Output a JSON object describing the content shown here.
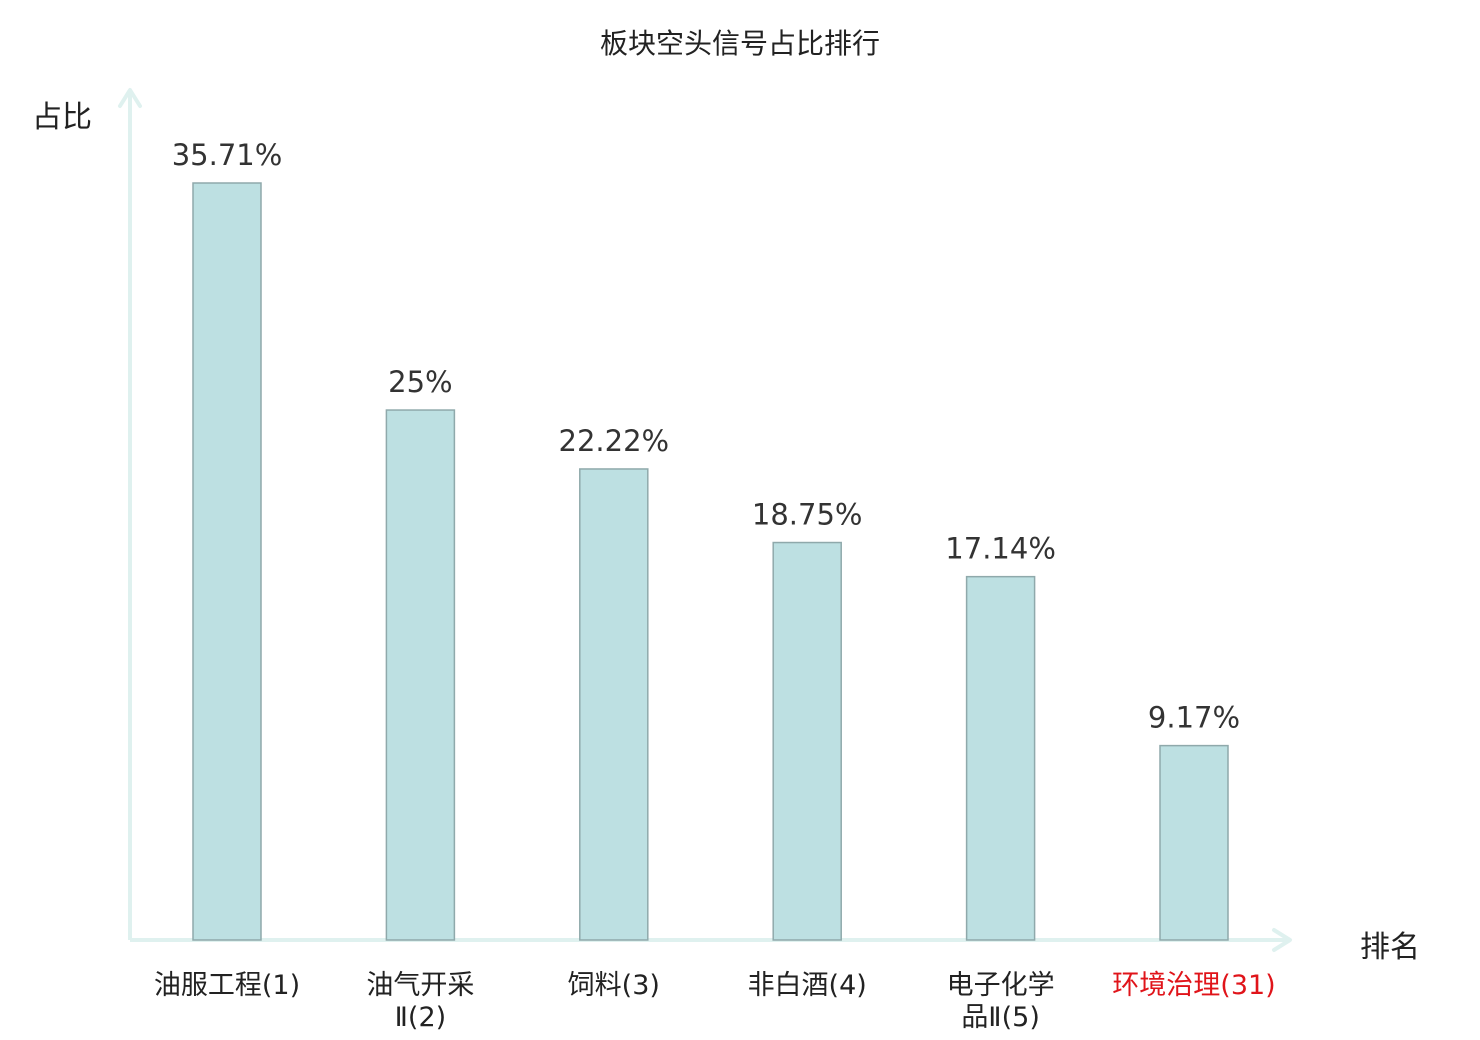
{
  "chart_data": {
    "type": "bar",
    "title": "板块空头信号占比排行",
    "xlabel": "排名",
    "ylabel": "占比",
    "categories": [
      "油服工程(1)",
      "油气开采Ⅱ(2)",
      "饲料(3)",
      "非白酒(4)",
      "电子化学品Ⅱ(5)",
      "环境治理(31)"
    ],
    "category_label_lines": [
      [
        "油服工程(1)"
      ],
      [
        "油气开采",
        "Ⅱ(2)"
      ],
      [
        "饲料(3)"
      ],
      [
        "非白酒(4)"
      ],
      [
        "电子化学",
        "品Ⅱ(5)"
      ],
      [
        "环境治理(31)"
      ]
    ],
    "values": [
      35.71,
      25,
      22.22,
      18.75,
      17.14,
      9.17
    ],
    "value_labels": [
      "35.71%",
      "25%",
      "22.22%",
      "18.75%",
      "17.14%",
      "9.17%"
    ],
    "highlighted_category_index": 5,
    "ylim": [
      0,
      40
    ],
    "grid": false,
    "legend": "none",
    "colors": {
      "bar_fill": "#bde0e2",
      "bar_stroke": "#8fa9ab",
      "axis": "#dff1ef",
      "text": "#222222",
      "highlight_text": "#e0141a"
    }
  }
}
